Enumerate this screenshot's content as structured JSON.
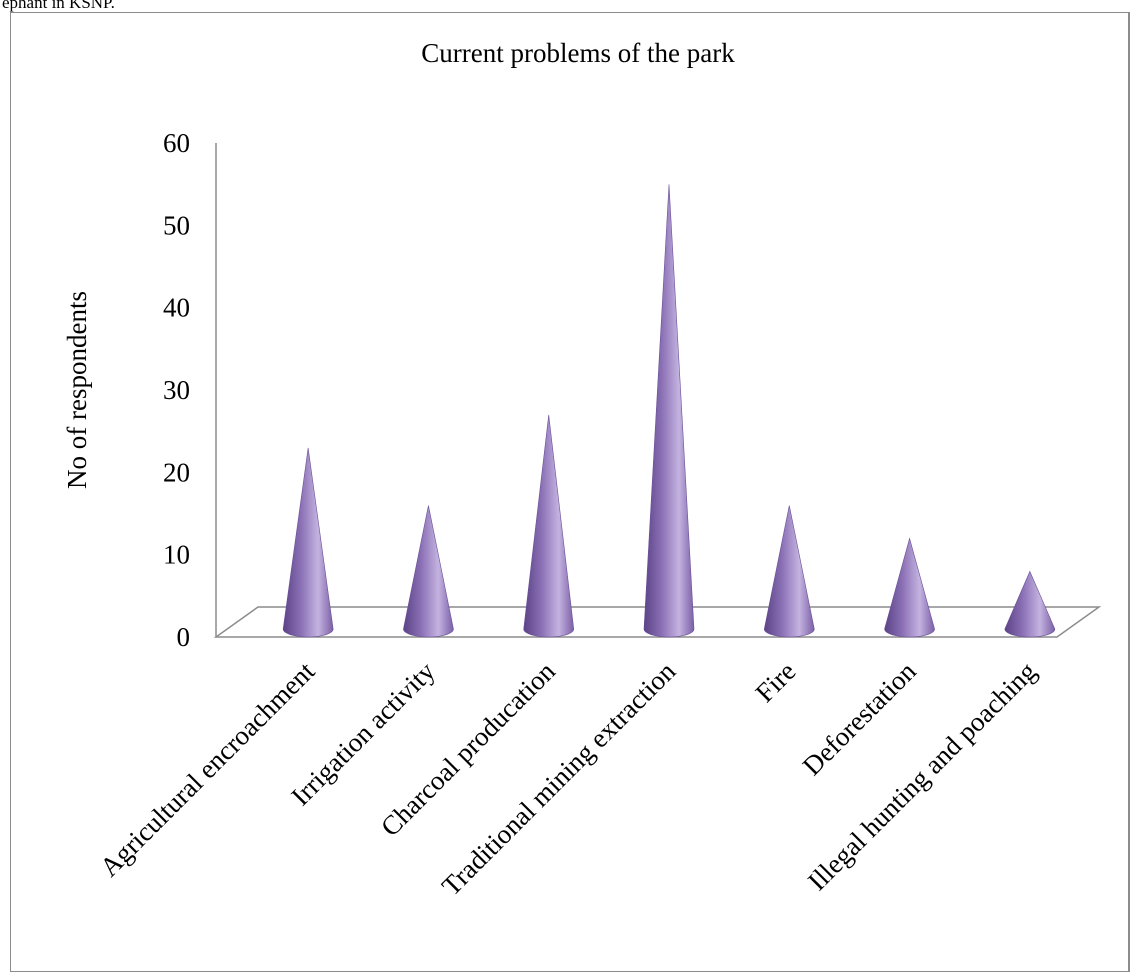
{
  "caption": "ephant in KSNP.",
  "chart_data": {
    "type": "bar",
    "style": "3d-cone",
    "title": "Current problems of the park",
    "xlabel": "",
    "ylabel": "No of respondents",
    "ylim": [
      0,
      60
    ],
    "yticks": [
      0,
      10,
      20,
      30,
      40,
      50,
      60
    ],
    "grid": false,
    "legend": "none",
    "categories": [
      "Agricultural encroachment",
      "Irrigation activity",
      "Charcoal producation",
      "Traditional mining extraction",
      "Fire",
      "Deforestation",
      "Illegal hunting and poaching"
    ],
    "values": [
      22,
      15,
      26,
      54,
      15,
      11,
      7
    ],
    "colors": {
      "cone": "#8a6fb5",
      "cone_dark": "#5b4386",
      "cone_light": "#c4b3e0"
    }
  }
}
